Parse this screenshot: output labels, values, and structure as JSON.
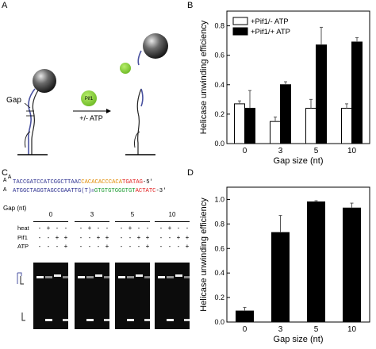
{
  "panels": {
    "a": "A",
    "b": "B",
    "c": "C",
    "d": "D"
  },
  "panel_a": {
    "gap_label": "Gap",
    "protein_label": "Pif1",
    "atp_label": "+/- ATP",
    "colors": {
      "bead": "#4a4a4a",
      "pif1": "#8fd33a",
      "dna": "#4a52a0"
    }
  },
  "panel_c": {
    "seq_line1_parts": [
      {
        "text": "TACCGATCCATCGGCTTAAC",
        "color": "#2b2f8f"
      },
      {
        "text": "CACACACCCACA",
        "color": "#e08a00"
      },
      {
        "text": "TGATAG",
        "color": "#e02020"
      },
      {
        "text": "-5'",
        "color": "#000000"
      }
    ],
    "seq_line2_parts": [
      {
        "text": "ATGGCTAGGTAGCCGAATTG",
        "color": "#2b2f8f"
      },
      {
        "text": "(T)",
        "color": "#2b2f8f"
      },
      {
        "text": "n",
        "color": "#2b2f8f"
      },
      {
        "text": "GTGTGTGGGTGT",
        "color": "#1a9a30"
      },
      {
        "text": "ACTATC",
        "color": "#e02020"
      },
      {
        "text": "-3'",
        "color": "#000000"
      }
    ],
    "loop_letter": "A",
    "gap_label": "Gap (nt)",
    "gap_values": [
      "0",
      "3",
      "5",
      "10"
    ],
    "row_labels": [
      "heat",
      "Pif1",
      "ATP"
    ],
    "lane_signs": {
      "heat": [
        "-",
        "+",
        "-",
        "-"
      ],
      "Pif1": [
        "-",
        "-",
        "+",
        "+"
      ],
      "ATP": [
        "-",
        "-",
        "-",
        "+"
      ]
    }
  },
  "panel_b": {
    "chart_data": {
      "type": "bar",
      "categories": [
        "0",
        "3",
        "5",
        "10"
      ],
      "series": [
        {
          "name": "+Pif1/- ATP",
          "values": [
            0.27,
            0.15,
            0.24,
            0.24
          ],
          "errors": [
            0.02,
            0.03,
            0.06,
            0.03
          ],
          "color": "#ffffff"
        },
        {
          "name": "+Pif1/+ ATP",
          "values": [
            0.24,
            0.4,
            0.67,
            0.69
          ],
          "errors": [
            0.12,
            0.02,
            0.12,
            0.03
          ],
          "color": "#000000"
        }
      ],
      "xlabel": "Gap size (nt)",
      "ylabel": "Helicase unwinding efficiency",
      "ylim": [
        0,
        0.9
      ],
      "yticks": [
        "0.0",
        "0.2",
        "0.4",
        "0.6",
        "0.8"
      ],
      "legend": "top-left"
    }
  },
  "panel_d": {
    "chart_data": {
      "type": "bar",
      "categories": [
        "0",
        "3",
        "5",
        "10"
      ],
      "values": [
        0.09,
        0.73,
        0.98,
        0.93
      ],
      "errors": [
        0.03,
        0.14,
        0.01,
        0.04
      ],
      "color": "#000000",
      "xlabel": "Gap size (nt)",
      "ylabel": "Helicase unwinding efficiency",
      "ylim": [
        0,
        1.1
      ],
      "yticks": [
        "0.0",
        "0.2",
        "0.4",
        "0.6",
        "0.8",
        "1.0"
      ]
    }
  }
}
